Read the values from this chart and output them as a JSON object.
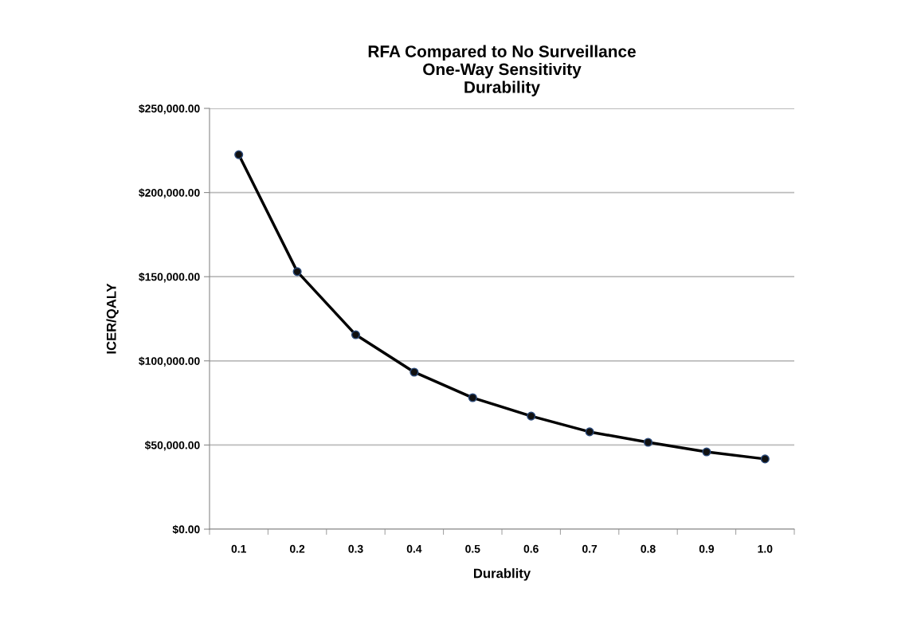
{
  "chart_data": {
    "type": "line",
    "title": "RFA Compared to No Surveillance\nOne-Way Sensitivity\nDurability",
    "xlabel": "Durablity",
    "ylabel": "ICER/QALY",
    "categories": [
      "0.1",
      "0.2",
      "0.3",
      "0.4",
      "0.5",
      "0.6",
      "0.7",
      "0.8",
      "0.9",
      "1.0"
    ],
    "series": [
      {
        "color": "#000000",
        "values": [
          222500,
          153000,
          115500,
          93300,
          78100,
          67200,
          57800,
          51600,
          45900,
          41700
        ]
      }
    ],
    "ylim": [
      0,
      250000
    ],
    "yticks": [
      {
        "value": 0,
        "label": "$0.00"
      },
      {
        "value": 50000,
        "label": "$50,000.00"
      },
      {
        "value": 100000,
        "label": "$100,000.00"
      },
      {
        "value": 150000,
        "label": "$150,000.00"
      },
      {
        "value": 200000,
        "label": "$200,000.00"
      },
      {
        "value": 250000,
        "label": "$250,000.00"
      }
    ],
    "grid": "y",
    "legend": false,
    "marker": "circle",
    "line_style": "solid"
  }
}
